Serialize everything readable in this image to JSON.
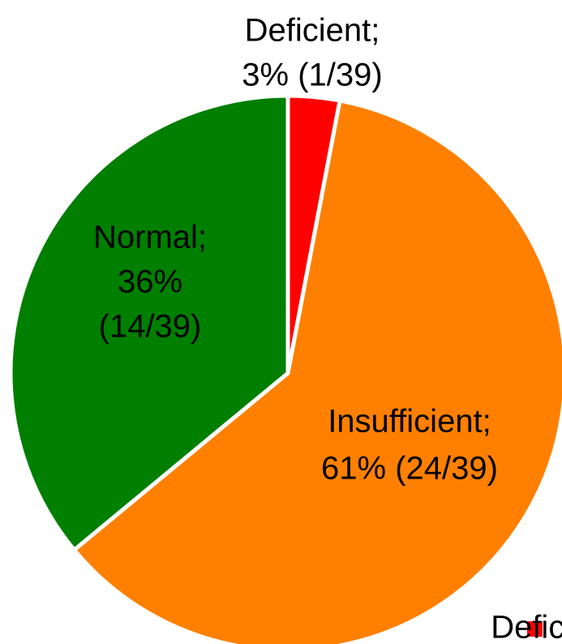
{
  "chart_data": {
    "type": "pie",
    "categories": [
      "Deficient",
      "Insufficient",
      "Normal"
    ],
    "values": [
      3,
      61,
      36
    ],
    "value_labels": [
      [
        "Deficient;",
        "3% (1/39)"
      ],
      [
        "Insufficient;",
        "61% (24/39)"
      ],
      [
        "Normal;",
        "36%",
        "(14/39)"
      ]
    ],
    "colors": [
      "#ff0000",
      "#ff8000",
      "#007f00"
    ]
  }
}
